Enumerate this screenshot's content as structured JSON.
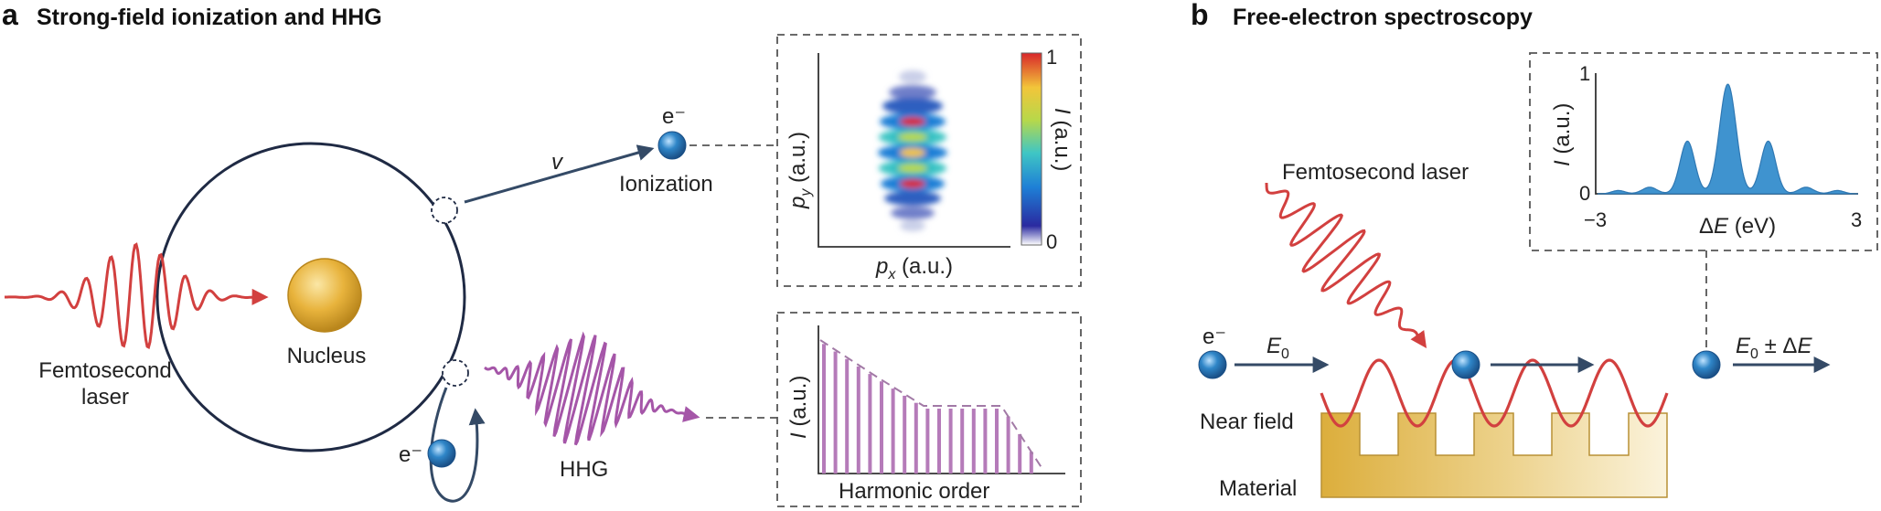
{
  "colors": {
    "laser_red": "#d2403f",
    "hhg_purple": "#a556a8",
    "electron_blue": "#2f86c8",
    "arrow_navy": "#344a66",
    "orbit": "#1f2a44",
    "nucleus_gold": "#e8b33c",
    "spectrum_blue": "#3f93cf",
    "material_gold": "#e3b84a",
    "bar_purple": "#b57bb9"
  },
  "panel_a": {
    "letter": "a",
    "title": "Strong-field ionization and HHG",
    "laser_label_line1": "Femtosecond",
    "laser_label_line2": "laser",
    "nucleus_label": "Nucleus",
    "velocity_label": "v",
    "electron_label_top": "e⁻",
    "ionization_label": "Ionization",
    "electron_label_bottom": "e⁻",
    "hhg_label": "HHG",
    "momentum_map": {
      "x_label_var": "p",
      "x_label_sub": "x",
      "x_label_unit": " (a.u.)",
      "y_label_var": "p",
      "y_label_sub": "y",
      "y_label_unit": " (a.u.)",
      "colorbar_max": "1",
      "colorbar_min": "0",
      "colorbar_label_var": "I",
      "colorbar_label_unit": " (a.u.)"
    },
    "harmonic_plot": {
      "x_label": "Harmonic order",
      "y_label_var": "I",
      "y_label_unit": " (a.u.)"
    }
  },
  "panel_b": {
    "letter": "b",
    "title": "Free-electron spectroscopy",
    "laser_label": "Femtosecond laser",
    "electron_label": "e⁻",
    "e0_var": "E",
    "e0_sub": "0",
    "e0_pm_suffix": " ± Δ",
    "e0_pm_var": "E",
    "near_field_label": "Near field",
    "material_label": "Material",
    "spectrum_inset": {
      "y_label_var": "I",
      "y_label_unit": " (a.u.)",
      "y_tick_max": "1",
      "y_tick_min": "0",
      "x_tick_min": "−3",
      "x_tick_max": "3",
      "x_label_prefix": "Δ",
      "x_label_var": "E",
      "x_label_unit": " (eV)"
    }
  }
}
